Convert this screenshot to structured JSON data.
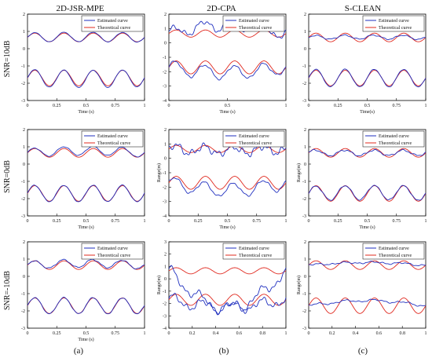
{
  "figure": {
    "column_titles": [
      "2D-JSR-MPE",
      "2D-CPA",
      "S-CLEAN"
    ],
    "row_labels": [
      "SNR=10dB",
      "SNR=0dB",
      "SNR=-10dB"
    ],
    "subfigure_labels": [
      "(a)",
      "(b)",
      "(c)"
    ]
  },
  "colors": {
    "estimated": "#1f2fbf",
    "theoretical": "#e0281e",
    "axis": "#000000"
  },
  "chart_data": {
    "type": "line",
    "x_range": [
      0,
      1
    ],
    "legend": [
      "Estimated curve",
      "Theoretical curve"
    ],
    "legend_position": "top-right",
    "grid": false,
    "theoretical_upper": {
      "offset": 0.65,
      "amplitude": 0.25,
      "cycles": 4,
      "phase": 0.0
    },
    "theoretical_lower": {
      "offset": -1.7,
      "amplitude": 0.45,
      "cycles": 4,
      "phase": 0.0
    },
    "panels": [
      {
        "row": 0,
        "col": 0,
        "ylim": [
          -3,
          2
        ],
        "yticks": [
          -3,
          -2,
          -1,
          0,
          1,
          2
        ],
        "xticks": [
          "0",
          "0.25",
          "0.5",
          "0.75",
          "1"
        ],
        "xlabel": "Time (s)",
        "ylabel": "",
        "estimated_upper": {
          "amplitude": 0.27,
          "phase": 0.02,
          "noise": 0.02,
          "drift": 0.03
        },
        "estimated_lower": {
          "amplitude": 0.5,
          "phase": 0.04,
          "noise": 0.02,
          "drift": -0.05
        }
      },
      {
        "row": 0,
        "col": 1,
        "ylim": [
          -4,
          2
        ],
        "yticks": [
          -4,
          -3,
          -2,
          -1,
          0,
          1,
          2
        ],
        "xticks": [
          "0",
          "0.5",
          "1"
        ],
        "xlabel": "Time (s)",
        "ylabel": "",
        "estimated_upper": {
          "amplitude": 0.35,
          "phase": 0.3,
          "noise": 0.25,
          "drift": 0.6
        },
        "estimated_lower": {
          "amplitude": 0.45,
          "phase": 0.2,
          "noise": 0.12,
          "drift": -0.35
        }
      },
      {
        "row": 0,
        "col": 2,
        "ylim": [
          -3,
          2
        ],
        "yticks": [
          -3,
          -2,
          -1,
          0,
          1,
          2
        ],
        "xticks": [
          "0",
          "0.25",
          "0.5",
          "0.75",
          "1"
        ],
        "xlabel": "Time(s)",
        "ylabel": "",
        "estimated_upper": {
          "amplitude": 0.12,
          "phase": 0.1,
          "noise": 0.05,
          "drift": 0.02
        },
        "estimated_lower": {
          "amplitude": 0.5,
          "phase": 0.03,
          "noise": 0.03,
          "drift": 0.0
        }
      },
      {
        "row": 1,
        "col": 0,
        "ylim": [
          -3,
          2
        ],
        "yticks": [
          -3,
          -2,
          -1,
          0,
          1,
          2
        ],
        "xticks": [
          "0",
          "0.25",
          "0.5",
          "0.75",
          "1"
        ],
        "xlabel": "Time (s)",
        "ylabel": "",
        "estimated_upper": {
          "amplitude": 0.26,
          "phase": 0.1,
          "noise": 0.03,
          "drift": 0.12
        },
        "estimated_lower": {
          "amplitude": 0.47,
          "phase": 0.05,
          "noise": 0.03,
          "drift": 0.0
        }
      },
      {
        "row": 1,
        "col": 1,
        "ylim": [
          -4,
          2
        ],
        "yticks": [
          -4,
          -3,
          -2,
          -1,
          0,
          1,
          2
        ],
        "xticks": [
          "0",
          "0.25",
          "0.5",
          "0.75",
          "1"
        ],
        "xlabel": "Time (s)",
        "ylabel": "Range(m)",
        "estimated_upper": {
          "amplitude": 0.3,
          "phase": 0.5,
          "noise": 0.35,
          "drift": -0.1
        },
        "estimated_lower": {
          "amplitude": 0.45,
          "phase": 0.25,
          "noise": 0.12,
          "drift": -0.5
        }
      },
      {
        "row": 1,
        "col": 2,
        "ylim": [
          -3,
          2
        ],
        "yticks": [
          -3,
          -2,
          -1,
          0,
          1,
          2
        ],
        "xticks": [
          "0",
          "0.25",
          "0.5",
          "0.75",
          "1"
        ],
        "xlabel": "Time (s)",
        "ylabel": "Range(m)",
        "estimated_upper": {
          "amplitude": 0.15,
          "phase": 0.2,
          "noise": 0.07,
          "drift": 0.0
        },
        "estimated_lower": {
          "amplitude": 0.42,
          "phase": 0.05,
          "noise": 0.05,
          "drift": 0.05
        }
      },
      {
        "row": 2,
        "col": 0,
        "ylim": [
          -3,
          2
        ],
        "yticks": [
          -3,
          -2,
          -1,
          0,
          1,
          2
        ],
        "xticks": [
          "0",
          "0.25",
          "0.5",
          "0.75",
          "1"
        ],
        "xlabel": "Time (s)",
        "ylabel": "",
        "estimated_upper": {
          "amplitude": 0.22,
          "phase": 0.15,
          "noise": 0.05,
          "drift": 0.1
        },
        "estimated_lower": {
          "amplitude": 0.47,
          "phase": 0.05,
          "noise": 0.04,
          "drift": 0.0
        }
      },
      {
        "row": 2,
        "col": 1,
        "ylim": [
          -4,
          3
        ],
        "yticks": [
          -4,
          -3,
          -2,
          -1,
          0,
          1,
          2,
          3
        ],
        "xticks": [
          "0",
          "0.2",
          "0.4",
          "0.6",
          "0.8",
          "1"
        ],
        "xlabel": "",
        "ylabel": "Range(m)",
        "estimated_upper": {
          "amplitude": 0.35,
          "phase": 0.8,
          "noise": 0.35,
          "drift": -3.0
        },
        "estimated_lower": {
          "amplitude": 0.4,
          "phase": 0.6,
          "noise": 0.35,
          "drift": -0.6
        }
      },
      {
        "row": 2,
        "col": 2,
        "ylim": [
          -3,
          2
        ],
        "yticks": [
          -3,
          -2,
          -1,
          0,
          1,
          2
        ],
        "xticks": [
          "0",
          "0.2",
          "0.4",
          "0.6",
          "0.8",
          "1"
        ],
        "xlabel": "",
        "ylabel": "Range(m)",
        "estimated_upper": {
          "amplitude": 0.05,
          "phase": 0.0,
          "noise": 0.06,
          "drift": 0.15
        },
        "estimated_lower": {
          "amplitude": 0.05,
          "phase": 0.0,
          "noise": 0.06,
          "drift": 0.3
        }
      }
    ]
  }
}
